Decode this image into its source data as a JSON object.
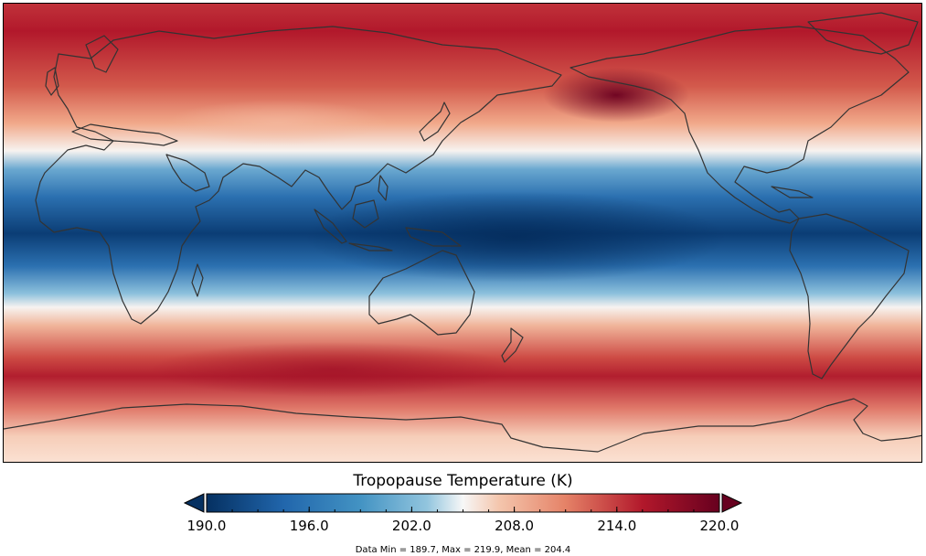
{
  "colorbar": {
    "title": "Tropopause Temperature (K)",
    "ticks": [
      "190.0",
      "196.0",
      "202.0",
      "208.0",
      "214.0",
      "220.0"
    ],
    "range": [
      190,
      220
    ],
    "extend": "both"
  },
  "stats_text": "Data Min = 189.7, Max = 219.9, Mean = 204.4",
  "colors": {
    "deep_blue": "#053061",
    "blue": "#2166ac",
    "light_blue": "#92c5de",
    "white": "#f7f7f7",
    "light_red": "#f4a582",
    "red": "#b2182b",
    "deep_red": "#67001f",
    "coastline": "#333333"
  }
}
